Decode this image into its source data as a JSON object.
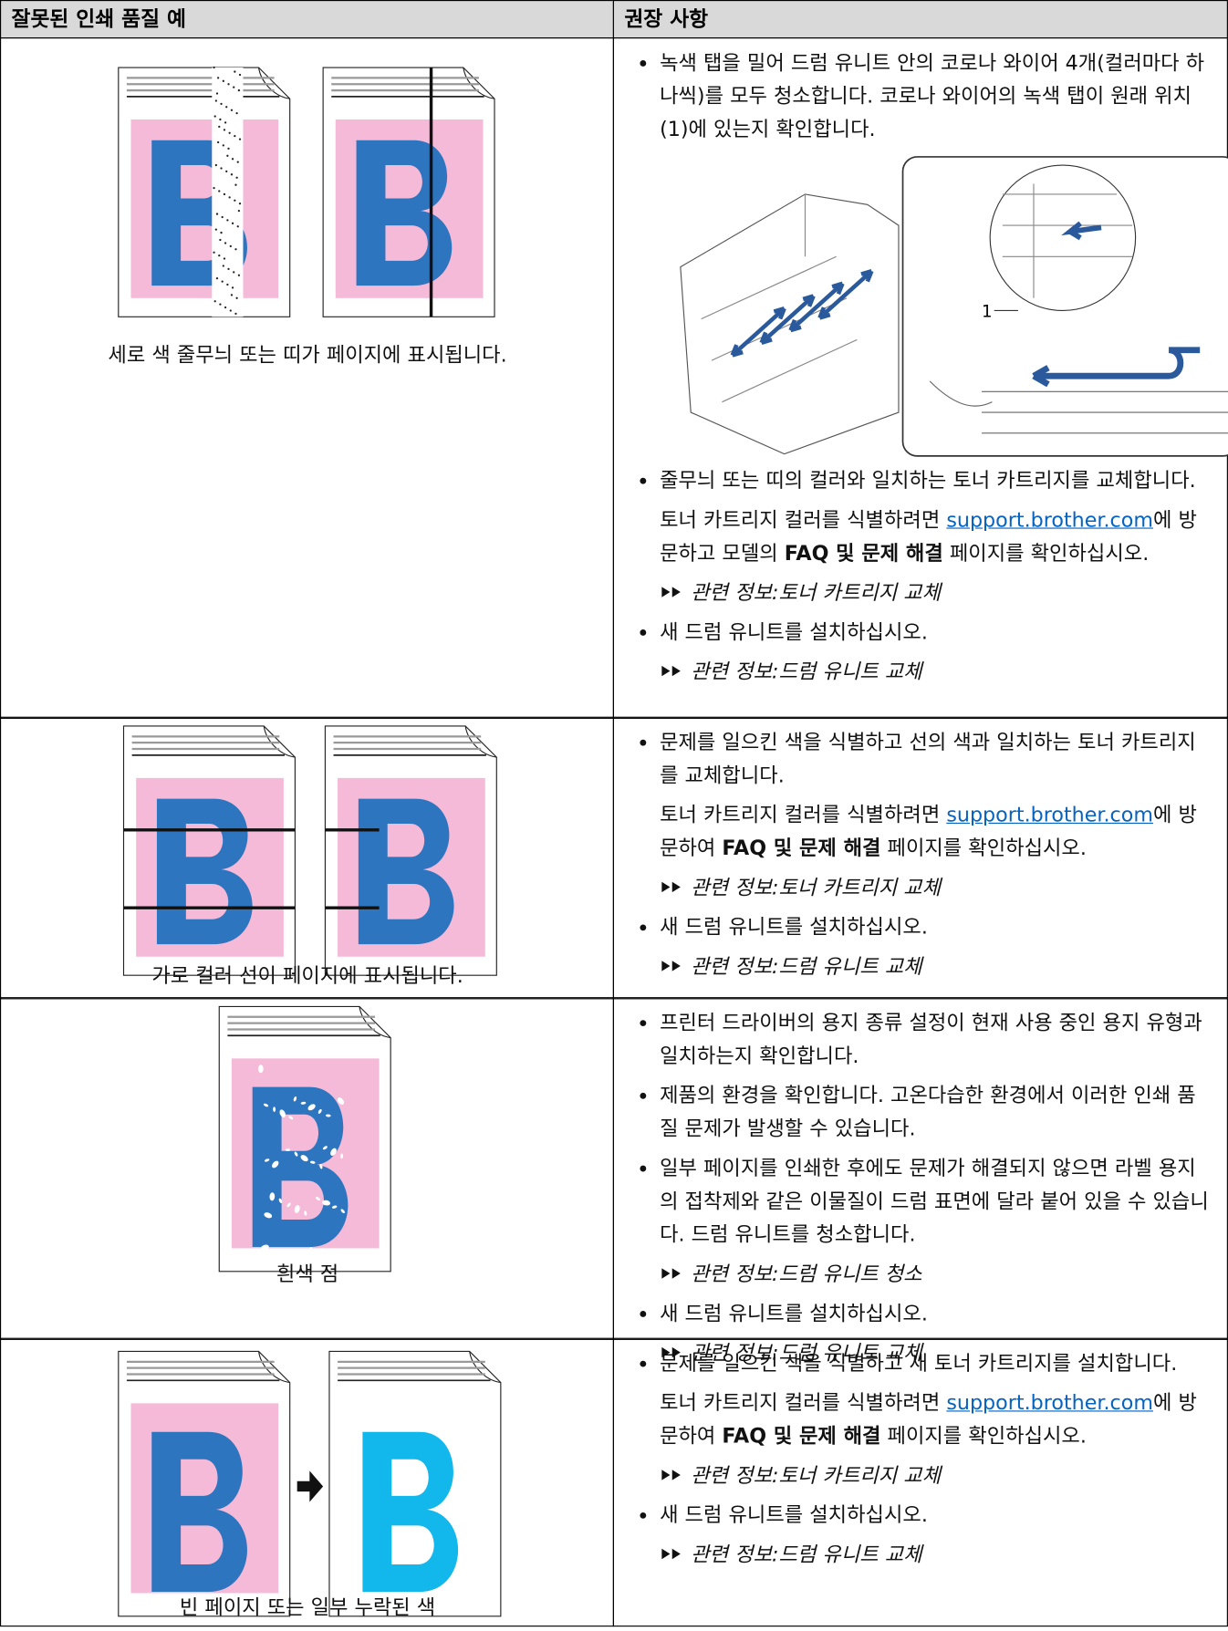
{
  "table": {
    "headers": [
      "잘못된 인쇄 품질 예",
      "권장 사항"
    ],
    "rows": [
      {
        "caption": "세로 색 줄무늬 또는 띠가 페이지에 표시됩니다.",
        "items": [
          {
            "blocks": [
              {
                "segments": [
                  {
                    "text": "녹색 탭을 밀어 드럼 유니트 안의 코로나 와이어 4개(컬러마다 하나씩)를 모두 청소합니다. 코로나 와이어의 녹색 탭이 원래 위치(1)에 있는지 확인합니다."
                  }
                ]
              },
              {
                "figure_label": "1"
              }
            ]
          },
          {
            "blocks": [
              {
                "segments": [
                  {
                    "text": "줄무늬 또는 띠의 컬러와 일치하는 토너 카트리지를 교체합니다."
                  }
                ]
              },
              {
                "segments": [
                  {
                    "text": "토너 카트리지 컬러를 식별하려면 "
                  },
                  {
                    "text": "support.brother.com",
                    "style": "link"
                  },
                  {
                    "text": "에 방문하고 모델의 "
                  },
                  {
                    "text": "FAQ 및 문제 해결",
                    "style": "bold"
                  },
                  {
                    "text": " 페이지를 확인하십시오."
                  }
                ]
              },
              {
                "segments": [
                  {
                    "text": "관련 정보:토너 카트리지 교체",
                    "style": "related"
                  }
                ]
              }
            ]
          },
          {
            "blocks": [
              {
                "segments": [
                  {
                    "text": "새 드럼 유니트를 설치하십시오."
                  }
                ]
              },
              {
                "segments": [
                  {
                    "text": "관련 정보:드럼 유니트 교체",
                    "style": "related"
                  }
                ]
              }
            ]
          }
        ]
      },
      {
        "caption": "가로 컬러 선이 페이지에 표시됩니다.",
        "items": [
          {
            "blocks": [
              {
                "segments": [
                  {
                    "text": "문제를 일으킨 색을 식별하고 선의 색과 일치하는 토너 카트리지를 교체합니다."
                  }
                ]
              },
              {
                "segments": [
                  {
                    "text": "토너 카트리지 컬러를 식별하려면 "
                  },
                  {
                    "text": "support.brother.com",
                    "style": "link"
                  },
                  {
                    "text": "에 방문하여 "
                  },
                  {
                    "text": "FAQ 및 문제 해결",
                    "style": "bold"
                  },
                  {
                    "text": " 페이지를 확인하십시오."
                  }
                ]
              },
              {
                "segments": [
                  {
                    "text": "관련 정보:토너 카트리지 교체",
                    "style": "related"
                  }
                ]
              }
            ]
          },
          {
            "blocks": [
              {
                "segments": [
                  {
                    "text": "새 드럼 유니트를 설치하십시오."
                  }
                ]
              },
              {
                "segments": [
                  {
                    "text": "관련 정보:드럼 유니트 교체",
                    "style": "related"
                  }
                ]
              }
            ]
          }
        ]
      },
      {
        "caption": "흰색 점",
        "items": [
          {
            "blocks": [
              {
                "segments": [
                  {
                    "text": "프린터 드라이버의 용지 종류 설정이 현재 사용 중인 용지 유형과 일치하는지 확인합니다."
                  }
                ]
              }
            ]
          },
          {
            "blocks": [
              {
                "segments": [
                  {
                    "text": "제품의 환경을 확인합니다. 고온다습한 환경에서 이러한 인쇄 품질 문제가 발생할 수 있습니다."
                  }
                ]
              }
            ]
          },
          {
            "blocks": [
              {
                "segments": [
                  {
                    "text": "일부 페이지를 인쇄한 후에도 문제가 해결되지 않으면 라벨 용지의 접착제와 같은 이물질이 드럼 표면에 달라 붙어 있을 수 있습니다. 드럼 유니트를 청소합니다."
                  }
                ]
              },
              {
                "segments": [
                  {
                    "text": "관련 정보:드럼 유니트 청소",
                    "style": "related"
                  }
                ]
              }
            ]
          },
          {
            "blocks": [
              {
                "segments": [
                  {
                    "text": "새 드럼 유니트를 설치하십시오."
                  }
                ]
              },
              {
                "segments": [
                  {
                    "text": "관련 정보:드럼 유니트 교체",
                    "style": "related"
                  }
                ]
              }
            ]
          }
        ]
      },
      {
        "caption": "빈 페이지 또는 일부 누락된 색",
        "items": [
          {
            "blocks": [
              {
                "segments": [
                  {
                    "text": "문제를 일으킨 색을 식별하고 새 토너 카트리지를 설치합니다."
                  }
                ]
              },
              {
                "segments": [
                  {
                    "text": "토너 카트리지 컬러를 식별하려면 "
                  },
                  {
                    "text": "support.brother.com",
                    "style": "link"
                  },
                  {
                    "text": "에 방문하여 "
                  },
                  {
                    "text": "FAQ 및 문제 해결",
                    "style": "bold"
                  },
                  {
                    "text": " 페이지를 확인하십시오."
                  }
                ]
              },
              {
                "segments": [
                  {
                    "text": "관련 정보:토너 카트리지 교체",
                    "style": "related"
                  }
                ]
              }
            ]
          },
          {
            "blocks": [
              {
                "segments": [
                  {
                    "text": "새 드럼 유니트를 설치하십시오."
                  }
                ]
              },
              {
                "segments": [
                  {
                    "text": "관련 정보:드럼 유니트 교체",
                    "style": "related"
                  }
                ]
              }
            ]
          }
        ]
      }
    ]
  }
}
